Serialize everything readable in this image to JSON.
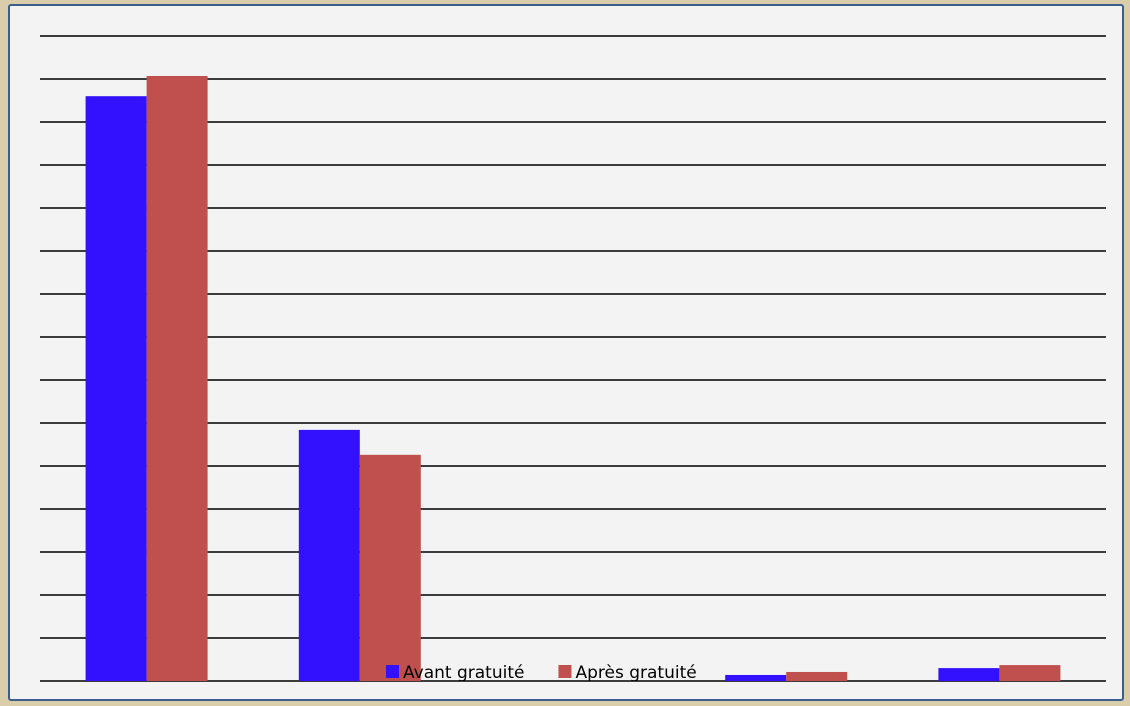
{
  "chart_data": {
    "type": "bar",
    "categories": [
      null,
      null,
      null,
      null,
      null
    ],
    "series": [
      {
        "name": "Avant gratuité",
        "color": "#3311ff",
        "values": [
          13.6,
          5.84,
          0,
          0.14,
          0.3
        ]
      },
      {
        "name": "Après gratuité",
        "color": "#c0504d",
        "values": [
          14.07,
          5.26,
          0,
          0.21,
          0.37
        ]
      }
    ],
    "ylim": [
      0,
      15
    ],
    "yticks": [
      0,
      1,
      2,
      3,
      4,
      5,
      6,
      7,
      8,
      9,
      10,
      11,
      12,
      13,
      14,
      15
    ],
    "grid": true,
    "legend": "bottom"
  }
}
